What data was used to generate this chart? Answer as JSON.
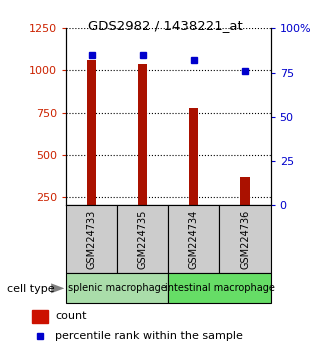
{
  "title": "GDS2982 / 1438221_at",
  "samples": [
    "GSM224733",
    "GSM224735",
    "GSM224734",
    "GSM224736"
  ],
  "counts": [
    1065,
    1040,
    780,
    370
  ],
  "percentile_ranks": [
    85,
    85,
    82,
    76
  ],
  "groups": [
    {
      "name": "splenic macrophage",
      "samples": [
        0,
        1
      ],
      "color": "#aaddaa"
    },
    {
      "name": "intestinal macrophage",
      "samples": [
        2,
        3
      ],
      "color": "#66dd66"
    }
  ],
  "sample_box_color": "#cccccc",
  "bar_color": "#aa1100",
  "dot_color": "#0000cc",
  "ylim_left": [
    200,
    1250
  ],
  "ylim_right": [
    0,
    100
  ],
  "yticks_left": [
    250,
    500,
    750,
    1000,
    1250
  ],
  "yticks_right": [
    0,
    25,
    50,
    75,
    100
  ],
  "left_axis_color": "#cc2200",
  "right_axis_color": "#0000cc",
  "legend_count_color": "#cc1100",
  "legend_dot_color": "#0000cc",
  "bar_width": 0.18
}
